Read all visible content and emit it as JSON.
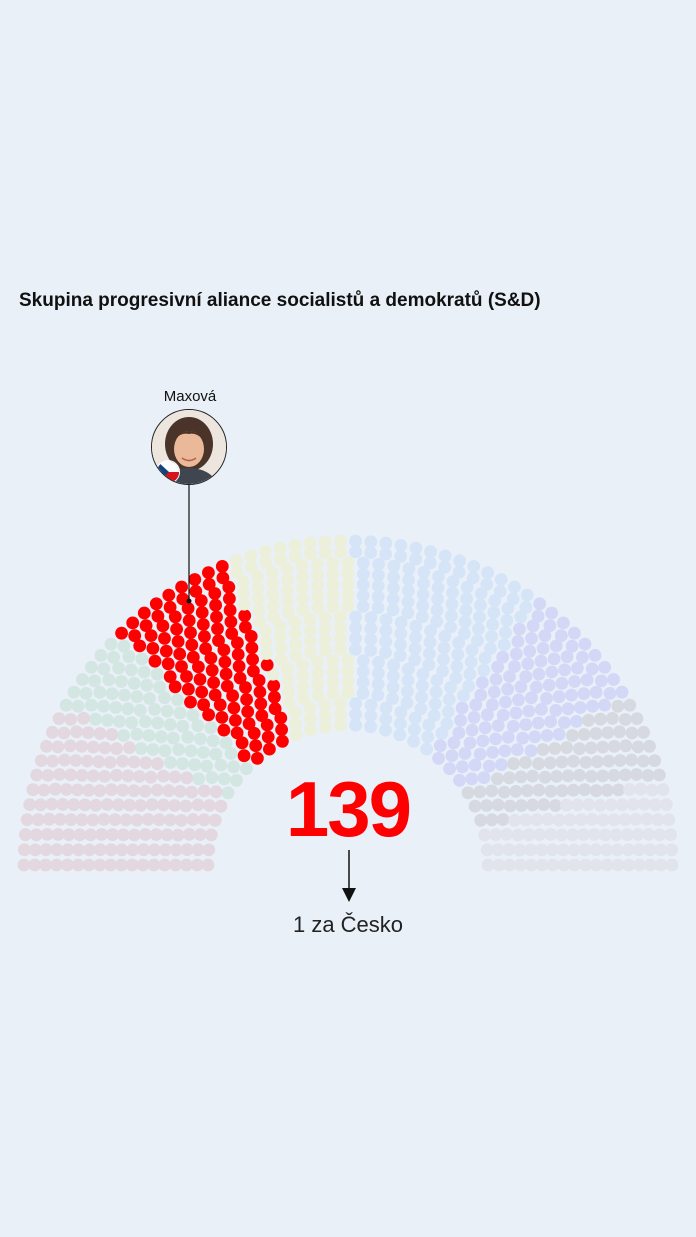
{
  "title": "Skupina progresivní aliance socialistů a demokratů (S&D)",
  "highlight": {
    "name": "Maxová",
    "avatar_icon": "portrait-with-czech-flag-icon",
    "flag_icon": "czech-flag-icon"
  },
  "seat_count": "139",
  "country_note": "1 za Česko",
  "colors": {
    "background": "#e9f0f8",
    "highlight": "#ff0000",
    "left": "#e3d8e0",
    "greens": "#d3e6e2",
    "sd": "#ff0000",
    "renew": "#ecefd9",
    "epp": "#d5e4f7",
    "ecr": "#d3d8f7",
    "right": "#d6dae0",
    "nonattached": "#e1e4ea"
  },
  "chart_data": {
    "type": "parliament",
    "title": "Skupina progresivní aliance socialistů a demokratů (S&D)",
    "highlighted_group": "S&D",
    "highlighted_value": 139,
    "annotation": "1 za Česko",
    "highlighted_member": "Maxová"
  }
}
